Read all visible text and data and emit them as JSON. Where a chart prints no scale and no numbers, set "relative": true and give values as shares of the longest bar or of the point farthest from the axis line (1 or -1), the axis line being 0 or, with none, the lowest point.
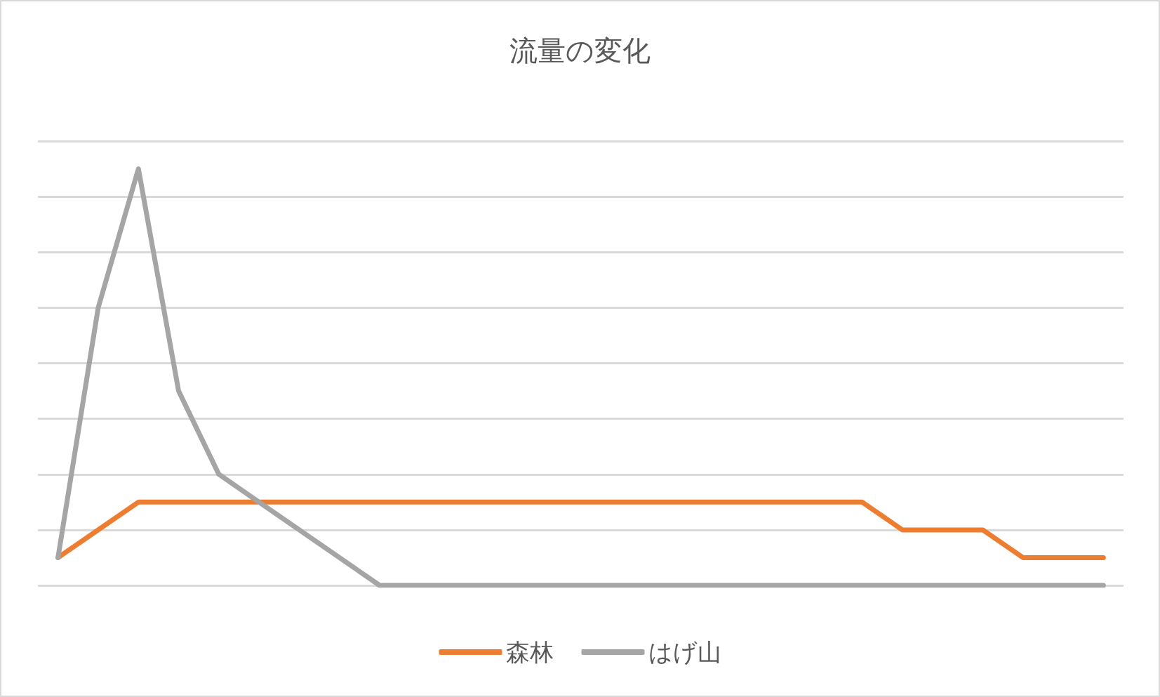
{
  "chart_data": {
    "type": "line",
    "title": "流量の変化",
    "relative": true,
    "grid": "y",
    "legend": "bottom",
    "marker": "none",
    "line_style": "solid",
    "categories": [
      null,
      null,
      null,
      null,
      null,
      null,
      null,
      null,
      null,
      null,
      null,
      null,
      null,
      null,
      null,
      null,
      null,
      null,
      null,
      null,
      null,
      null,
      null,
      null,
      null,
      null,
      null
    ],
    "series": [
      {
        "name": "森林",
        "color": "#ed7d31",
        "values": [
          0.0667,
          0.1333,
          0.2,
          0.2,
          0.2,
          0.2,
          0.2,
          0.2,
          0.2,
          0.2,
          0.2,
          0.2,
          0.2,
          0.2,
          0.2,
          0.2,
          0.2,
          0.2,
          0.2,
          0.2,
          0.2,
          0.1333,
          0.1333,
          0.1333,
          0.0667,
          0.0667,
          0.0667
        ]
      },
      {
        "name": "はげ山",
        "color": "#a5a5a5",
        "values": [
          0.0667,
          0.6667,
          1,
          0.4667,
          0.2667,
          0.2,
          0.1333,
          0.0667,
          0,
          0,
          0,
          0,
          0,
          0,
          0,
          0,
          0,
          0,
          0,
          0,
          0,
          0,
          0,
          0,
          0,
          0,
          0
        ]
      }
    ]
  }
}
